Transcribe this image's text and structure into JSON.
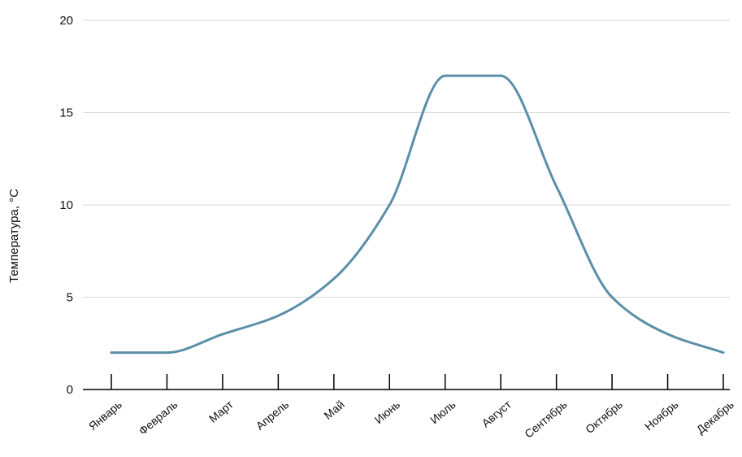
{
  "chart_data": {
    "type": "line",
    "title": "",
    "xlabel": "",
    "ylabel": "Температура, °C",
    "categories": [
      "Январь",
      "Февраль",
      "Март",
      "Апрель",
      "Май",
      "Июнь",
      "Июль",
      "Август",
      "Сентябрь",
      "Октябрь",
      "Ноябрь",
      "Декабрь"
    ],
    "series": [
      {
        "values": [
          2,
          2,
          3,
          4,
          6,
          10,
          17,
          17,
          11,
          5,
          3,
          2
        ]
      }
    ],
    "ylim": [
      0,
      20
    ],
    "yticks": [
      "0",
      "5",
      "10",
      "15",
      "20"
    ],
    "grid": true,
    "smooth": true,
    "legend": "none",
    "colors": {
      "line": "#5b8fa8",
      "grid": "#d9d9d9",
      "axis": "#000000"
    }
  }
}
